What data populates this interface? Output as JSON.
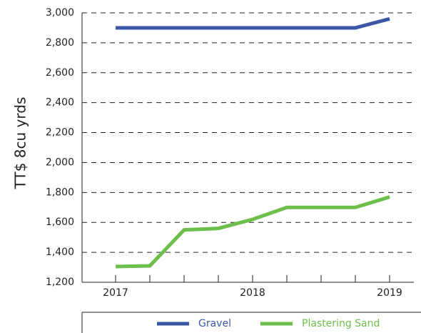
{
  "chart_data": {
    "type": "line",
    "y_label": "TT$ 8cu yrds",
    "categories": [
      "2017",
      null,
      null,
      null,
      "2018",
      null,
      null,
      null,
      "2019"
    ],
    "series": [
      {
        "name": "Gravel",
        "color": "#3a56a6",
        "values": [
          2900,
          2900,
          2900,
          2900,
          2900,
          2900,
          2900,
          2900,
          2960
        ]
      },
      {
        "name": "Plastering Sand",
        "color": "#6cbf4a",
        "values": [
          1305,
          1310,
          1550,
          1560,
          1620,
          1700,
          1700,
          1700,
          1770
        ]
      }
    ],
    "ylim": [
      1200,
      3000
    ],
    "yticks": [
      {
        "value": 1200,
        "label": "1,200"
      },
      {
        "value": 1400,
        "label": "1,400"
      },
      {
        "value": 1600,
        "label": "1,600"
      },
      {
        "value": 1800,
        "label": "1,800"
      },
      {
        "value": 2000,
        "label": "2,000"
      },
      {
        "value": 2200,
        "label": "2,200"
      },
      {
        "value": 2400,
        "label": "2,400"
      },
      {
        "value": 2600,
        "label": "2,600"
      },
      {
        "value": 2800,
        "label": "2,800"
      },
      {
        "value": 3000,
        "label": "3,000"
      }
    ],
    "grid": true,
    "legend": "bottom"
  }
}
